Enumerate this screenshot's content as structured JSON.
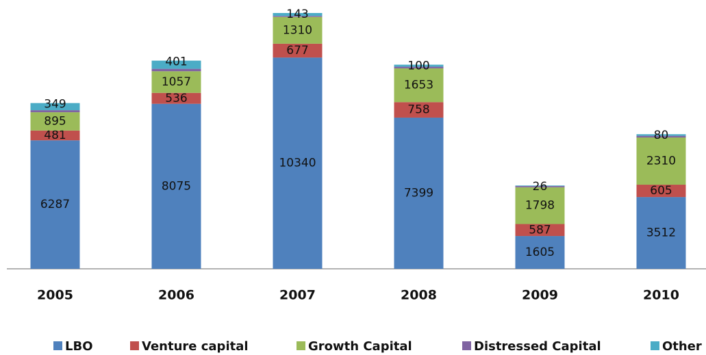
{
  "chart_data": {
    "type": "stacked_bar",
    "categories": [
      "2005",
      "2006",
      "2007",
      "2008",
      "2009",
      "2010"
    ],
    "series": [
      {
        "name": "LBO",
        "color": "#4f81bd",
        "values": [
          6287,
          8075,
          10340,
          7399,
          1605,
          3512
        ]
      },
      {
        "name": "Venture capital",
        "color": "#c0504d",
        "values": [
          481,
          536,
          677,
          758,
          587,
          605
        ]
      },
      {
        "name": "Growth Capital",
        "color": "#9bbb59",
        "values": [
          895,
          1057,
          1310,
          1653,
          1798,
          2310
        ]
      },
      {
        "name": "Distressed Capital",
        "color": "#8064a2",
        "values": [
          100,
          120,
          50,
          80,
          60,
          80
        ],
        "show_values": false
      },
      {
        "name": "Other",
        "color": "#4bacc6",
        "values": [
          349,
          401,
          143,
          100,
          26,
          80
        ]
      }
    ],
    "legend": "bottom"
  }
}
